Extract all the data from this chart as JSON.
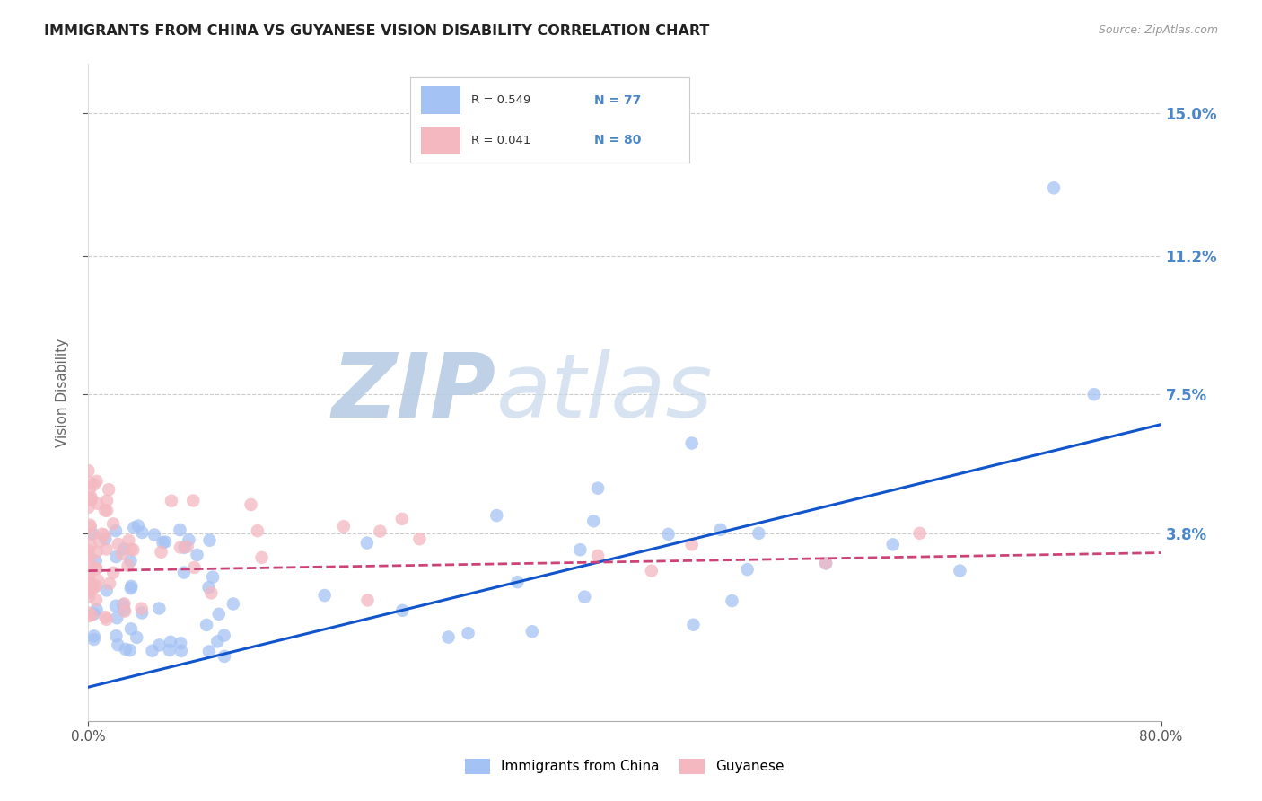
{
  "title": "IMMIGRANTS FROM CHINA VS GUYANESE VISION DISABILITY CORRELATION CHART",
  "source": "Source: ZipAtlas.com",
  "ylabel": "Vision Disability",
  "y_tick_labels": [
    "3.8%",
    "7.5%",
    "11.2%",
    "15.0%"
  ],
  "y_tick_values": [
    0.038,
    0.075,
    0.112,
    0.15
  ],
  "x_min": 0.0,
  "x_max": 0.8,
  "y_min": -0.012,
  "y_max": 0.163,
  "r_china": 0.549,
  "n_china": 77,
  "r_guyanese": 0.041,
  "n_guyanese": 80,
  "blue_color": "#a4c2f4",
  "pink_color": "#f4b8c1",
  "blue_line_color": "#1155cc",
  "pink_line_color": "#cc4477",
  "title_color": "#222222",
  "axis_label_color": "#4a86c8",
  "watermark_zip_color": "#d0dff0",
  "watermark_atlas_color": "#c8d8ee",
  "background_color": "#ffffff",
  "grid_color": "#cccccc",
  "legend_label_color": "#333333",
  "legend_n_color": "#4a86c8"
}
